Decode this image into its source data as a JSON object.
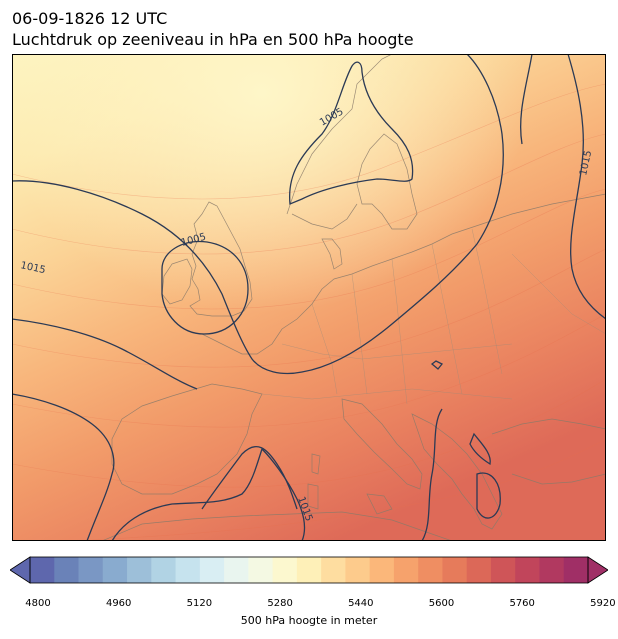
{
  "title": {
    "line1": "06-09-1826 12 UTC",
    "line2": "Luchtdruk op zeeniveau in hPa en 500 hPa hoogte"
  },
  "map": {
    "isobar_labels": [
      "1005",
      "1005",
      "1015",
      "1015",
      "1015"
    ],
    "colors": {
      "land_border": "#8a7a6a",
      "isobar": "#2b3a55"
    }
  },
  "colorbar": {
    "tick_labels": [
      "4800",
      "4960",
      "5120",
      "5280",
      "5440",
      "5600",
      "5760",
      "5920"
    ],
    "title": "500 hPa hoogte in meter",
    "colors": [
      "#5e67ad",
      "#6a82b8",
      "#7a97c4",
      "#89abcf",
      "#9dbfd9",
      "#b1d3e4",
      "#c6e3ee",
      "#d9eef3",
      "#e9f5ef",
      "#f4f9e3",
      "#fcf8cf",
      "#fef0b8",
      "#feddA0",
      "#fdcb8c",
      "#fbb77a",
      "#f6a26c",
      "#ef8e62",
      "#e67b5b",
      "#dc6858",
      "#cf5558",
      "#c1455b",
      "#b13960",
      "#a02f66"
    ]
  }
}
